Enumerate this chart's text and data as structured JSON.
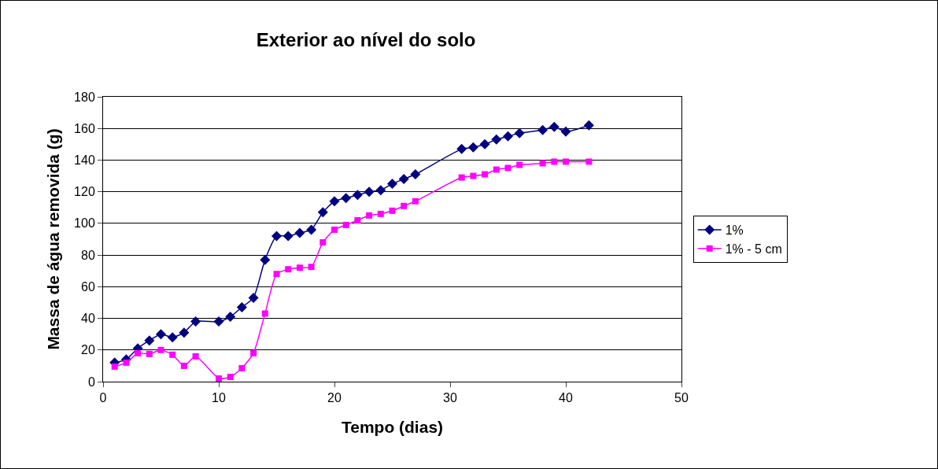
{
  "chart_data": {
    "type": "line",
    "title": "Exterior ao nível do solo",
    "xlabel": "Tempo (dias)",
    "ylabel": "Massa de água removida (g)",
    "x": [
      1,
      2,
      3,
      4,
      5,
      6,
      7,
      8,
      10,
      11,
      12,
      13,
      14,
      15,
      16,
      17,
      18,
      19,
      20,
      21,
      22,
      23,
      24,
      25,
      26,
      27,
      31,
      32,
      33,
      34,
      35,
      36,
      38,
      39,
      40,
      42
    ],
    "series": [
      {
        "name": "1%",
        "color": "#000080",
        "marker": "diamond",
        "values": [
          12,
          14,
          21,
          26,
          30,
          28,
          31,
          38,
          38,
          41,
          47,
          53,
          77,
          92,
          92,
          94,
          96,
          107,
          114,
          116,
          118,
          120,
          121,
          125,
          128,
          131,
          147,
          148,
          150,
          153,
          155,
          157,
          159,
          161,
          158,
          162
        ]
      },
      {
        "name": "1% - 5 cm",
        "color": "#ff00ff",
        "marker": "square",
        "values": [
          9.5,
          12,
          18,
          17.5,
          20,
          17,
          10,
          16,
          2,
          3,
          8.5,
          18,
          43,
          68,
          71,
          72,
          72.5,
          88,
          96,
          99,
          102,
          105,
          106,
          108,
          111,
          114,
          129,
          130,
          131,
          134,
          135,
          137,
          138,
          139,
          139,
          139
        ]
      }
    ],
    "xlim": [
      0,
      50
    ],
    "xticks": [
      0,
      10,
      20,
      30,
      40,
      50
    ],
    "ylim": [
      0,
      180
    ],
    "yticks": [
      0,
      20,
      40,
      60,
      80,
      100,
      120,
      140,
      160,
      180
    ],
    "grid": "y",
    "legend": "right",
    "line_style": "solid"
  }
}
